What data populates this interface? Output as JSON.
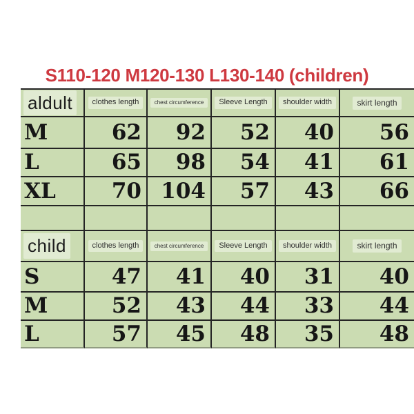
{
  "title": {
    "text": "S110-120 M120-130 L130-140 (children)"
  },
  "colors": {
    "title_red": "#ce3940",
    "table_green": "#cbdcb2",
    "line_dark": "#242424",
    "text_dark": "#161616"
  },
  "chart_data": [
    {
      "type": "table",
      "name": "adult-size-table",
      "corner_label": "aldult",
      "columns": [
        "clothes length",
        "chest circumference",
        "Sleeve Length",
        "shoulder width",
        "skirt length"
      ],
      "row_labels": [
        "M",
        "L",
        "XL"
      ],
      "rows": [
        [
          62,
          92,
          52,
          40,
          56
        ],
        [
          65,
          98,
          54,
          41,
          61
        ],
        [
          70,
          104,
          57,
          43,
          66
        ]
      ]
    },
    {
      "type": "table",
      "name": "child-size-table",
      "corner_label": "child",
      "columns": [
        "clothes length",
        "chest circumference",
        "Sleeve Length",
        "shoulder width",
        "skirt length"
      ],
      "row_labels": [
        "S",
        "M",
        "L"
      ],
      "rows": [
        [
          47,
          41,
          40,
          31,
          40
        ],
        [
          52,
          43,
          44,
          33,
          44
        ],
        [
          57,
          45,
          48,
          35,
          48
        ]
      ]
    }
  ]
}
